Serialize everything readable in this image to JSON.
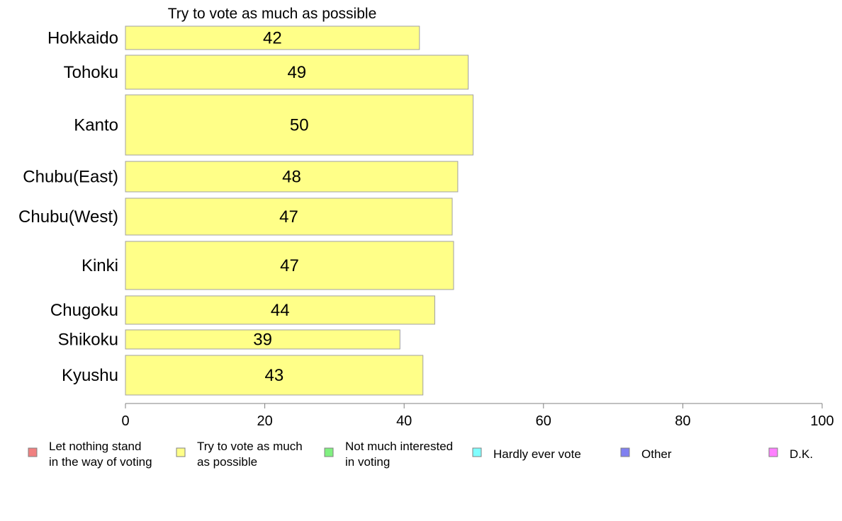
{
  "chart_data": {
    "type": "bar",
    "orientation": "horizontal",
    "title": "Try to vote as much as possible",
    "categories": [
      "Hokkaido",
      "Tohoku",
      "Kanto",
      "Chubu(East)",
      "Chubu(West)",
      "Kinki",
      "Chugoku",
      "Shikoku",
      "Kyushu"
    ],
    "values": [
      42.2,
      49.2,
      49.9,
      47.7,
      46.9,
      47.1,
      44.4,
      39.4,
      42.7
    ],
    "data_labels": [
      "42",
      "49",
      "50",
      "48",
      "47",
      "47",
      "44",
      "39",
      "43"
    ],
    "xlim": [
      0,
      100
    ],
    "xticks": [
      0,
      20,
      40,
      60,
      80,
      100
    ],
    "xtick_labels": [
      "0",
      "20",
      "40",
      "60",
      "80",
      "100"
    ],
    "grid": false,
    "bar_color": "#ffff88",
    "bar_border_color": "#a0a0a0",
    "legend": {
      "placement": "bottom",
      "entries": [
        {
          "line1": "Let nothing stand",
          "line2": "in the way of voting",
          "color": "#f08080"
        },
        {
          "line1": "Try to vote as much",
          "line2": "as possible",
          "color": "#ffff88"
        },
        {
          "line1": "Not much interested",
          "line2": "in voting",
          "color": "#80f080"
        },
        {
          "line1": "Hardly ever vote",
          "line2": "",
          "color": "#80ffff"
        },
        {
          "line1": "Other",
          "line2": "",
          "color": "#8080f0"
        },
        {
          "line1": "D.K.",
          "line2": "",
          "color": "#ff80ff"
        }
      ]
    }
  }
}
